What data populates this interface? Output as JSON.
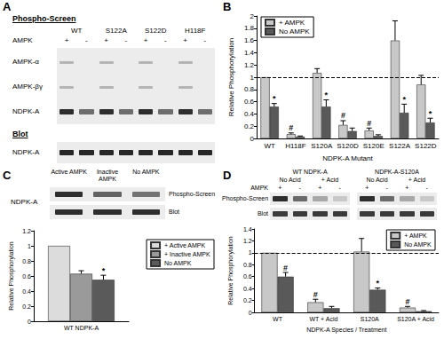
{
  "gels": [
    {
      "panel": "A",
      "title": "Phospho-Screen",
      "lanes": [
        "WT",
        "S122A",
        "S122D",
        "H118F"
      ],
      "row_label": "AMPK",
      "treatments": [
        "+",
        "-"
      ],
      "bands": [
        "AMPK-α",
        "AMPK-βγ",
        "NDPK-A"
      ],
      "blot_title": "Blot",
      "blot_bands": [
        "NDPK-A"
      ]
    },
    {
      "panel": "C",
      "title": "NDPK-A",
      "lanes": [
        "Active AMPK",
        "Inactive AMPK",
        "No AMPK"
      ],
      "rows": [
        "Phospho-Screen",
        "Blot"
      ]
    },
    {
      "panel": "D",
      "groups": [
        "WT NDPK-A",
        "NDPK-A-S120A"
      ],
      "conditions": [
        "No Acid",
        "+ Acid"
      ],
      "row_label": "AMPK",
      "treatments": [
        "+",
        "-"
      ],
      "rows": [
        "Phospho-Screen",
        "Blot"
      ]
    }
  ],
  "chart_data": [
    {
      "panel": "B",
      "type": "bar",
      "ylabel": "Relative Phosphorylation",
      "xlabel": "NDPK-A Mutant",
      "categories": [
        "WT",
        "H118F",
        "S120A",
        "S120D",
        "S120E",
        "S122A",
        "S122D"
      ],
      "series": [
        {
          "name": "+ AMPK",
          "color": "#c8c8c8",
          "values": [
            1,
            0.07,
            1.07,
            0.22,
            0.13,
            1.6,
            0.88
          ],
          "errors": [
            0,
            0.02,
            0.07,
            0.07,
            0.04,
            0.32,
            0.15
          ]
        },
        {
          "name": "No AMPK",
          "color": "#595959",
          "values": [
            0.52,
            0.03,
            0.52,
            0.12,
            0.04,
            0.42,
            0.26
          ],
          "errors": [
            0.05,
            0.01,
            0.11,
            0.05,
            0.02,
            0.14,
            0.07
          ]
        }
      ],
      "ylim": [
        0,
        2
      ],
      "yticks": [
        0,
        0.2,
        0.4,
        0.6,
        0.8,
        1,
        1.2,
        1.4,
        1.6,
        1.8,
        2
      ],
      "reference_line": 1,
      "legend": "top-left",
      "grid": false,
      "annotations": [
        {
          "category": "WT",
          "series": "No AMPK",
          "text": "*"
        },
        {
          "category": "H118F",
          "series": "+ AMPK",
          "text": "#"
        },
        {
          "category": "S120A",
          "series": "No AMPK",
          "text": "*"
        },
        {
          "category": "S120D",
          "series": "+ AMPK",
          "text": "#"
        },
        {
          "category": "S120E",
          "series": "+ AMPK",
          "text": "#"
        },
        {
          "category": "S122A",
          "series": "No AMPK",
          "text": "*"
        },
        {
          "category": "S122D",
          "series": "No AMPK",
          "text": "*"
        }
      ]
    },
    {
      "type": "bar",
      "ylabel": "Relative Phosphorylation",
      "categories": [
        "WT NDPK-A"
      ],
      "series": [
        {
          "name": "+ Active AMPK",
          "color": "#dcdcdc",
          "values": [
            1
          ],
          "errors": [
            0
          ]
        },
        {
          "name": "+ Inactive AMPK",
          "color": "#9a9a9a",
          "values": [
            0.63
          ],
          "errors": [
            0.04
          ]
        },
        {
          "name": "No AMPK",
          "color": "#5a5a5a",
          "values": [
            0.55
          ],
          "errors": [
            0.06
          ]
        }
      ],
      "ylim": [
        0,
        1.2
      ],
      "yticks": [
        0,
        0.2,
        0.4,
        0.6,
        0.8,
        1,
        1.2
      ],
      "legend": "right",
      "grid": false,
      "annotations": [
        {
          "category": "WT NDPK-A",
          "series": "No AMPK",
          "text": "*"
        }
      ]
    },
    {
      "type": "bar",
      "ylabel": "Relative Phosphorylation",
      "xlabel": "NDPK-A Species / Treatment",
      "categories": [
        "WT",
        "WT + Acid",
        "S120A",
        "S120A + Acid"
      ],
      "series": [
        {
          "name": "+ AMPK",
          "color": "#c8c8c8",
          "values": [
            1,
            0.17,
            1.02,
            0.08
          ],
          "errors": [
            0,
            0.05,
            0.22,
            0.02
          ]
        },
        {
          "name": "No AMPK",
          "color": "#595959",
          "values": [
            0.6,
            0.07,
            0.38,
            0.02
          ],
          "errors": [
            0.07,
            0.03,
            0.03,
            0.01
          ]
        }
      ],
      "ylim": [
        0,
        1.4
      ],
      "yticks": [
        0,
        0.2,
        0.4,
        0.6,
        0.8,
        1,
        1.2,
        1.4
      ],
      "reference_line": 1,
      "legend": "top-right",
      "grid": false,
      "annotations": [
        {
          "category": "WT",
          "series": "No AMPK",
          "text": "#"
        },
        {
          "category": "WT + Acid",
          "series": "+ AMPK",
          "text": "#"
        },
        {
          "category": "S120A",
          "series": "No AMPK",
          "text": "*"
        },
        {
          "category": "S120A + Acid",
          "series": "+ AMPK",
          "text": "#"
        }
      ]
    }
  ]
}
